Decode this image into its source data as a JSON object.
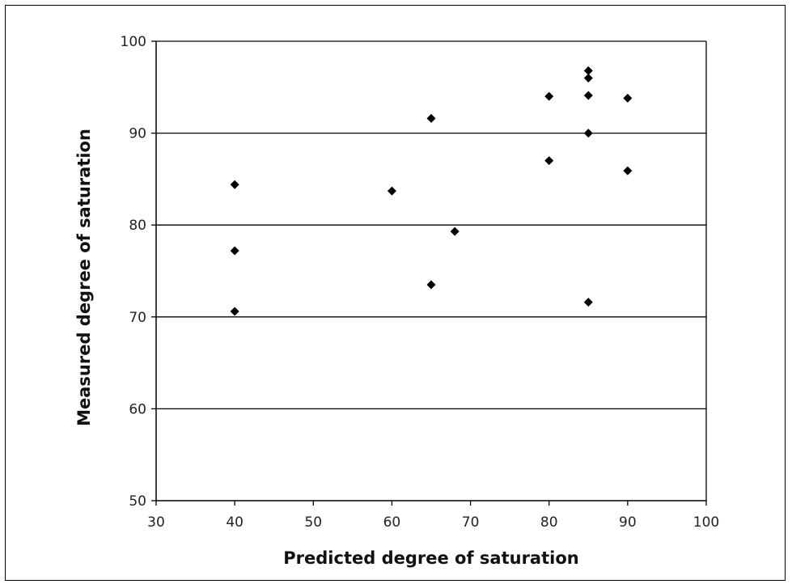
{
  "chart_data": {
    "type": "scatter",
    "title": "",
    "xlabel": "Predicted degree of saturation",
    "ylabel": "Measured degree of saturation",
    "xlim": [
      30,
      100
    ],
    "ylim": [
      50,
      100
    ],
    "x_ticks": [
      30,
      40,
      50,
      60,
      70,
      80,
      90,
      100
    ],
    "y_ticks": [
      50,
      60,
      70,
      80,
      90,
      100
    ],
    "x_tick_labels": [
      "30",
      "40",
      "50",
      "60",
      "70",
      "80",
      "90",
      "100"
    ],
    "y_tick_labels": [
      "50",
      "60",
      "70",
      "80",
      "90",
      "100"
    ],
    "grid": "horizontal",
    "legend": "none",
    "marker": "diamond",
    "marker_color": "#000000",
    "points": [
      {
        "x": 40,
        "y": 84.4
      },
      {
        "x": 40,
        "y": 77.2
      },
      {
        "x": 40,
        "y": 70.6
      },
      {
        "x": 60,
        "y": 83.7
      },
      {
        "x": 65,
        "y": 91.6
      },
      {
        "x": 65,
        "y": 73.5
      },
      {
        "x": 68,
        "y": 79.3
      },
      {
        "x": 80,
        "y": 94.0
      },
      {
        "x": 80,
        "y": 87.0
      },
      {
        "x": 85,
        "y": 96.8
      },
      {
        "x": 85,
        "y": 96.0
      },
      {
        "x": 85,
        "y": 94.1
      },
      {
        "x": 85,
        "y": 90.0
      },
      {
        "x": 85,
        "y": 71.6
      },
      {
        "x": 90,
        "y": 93.8
      },
      {
        "x": 90,
        "y": 85.9
      }
    ]
  }
}
